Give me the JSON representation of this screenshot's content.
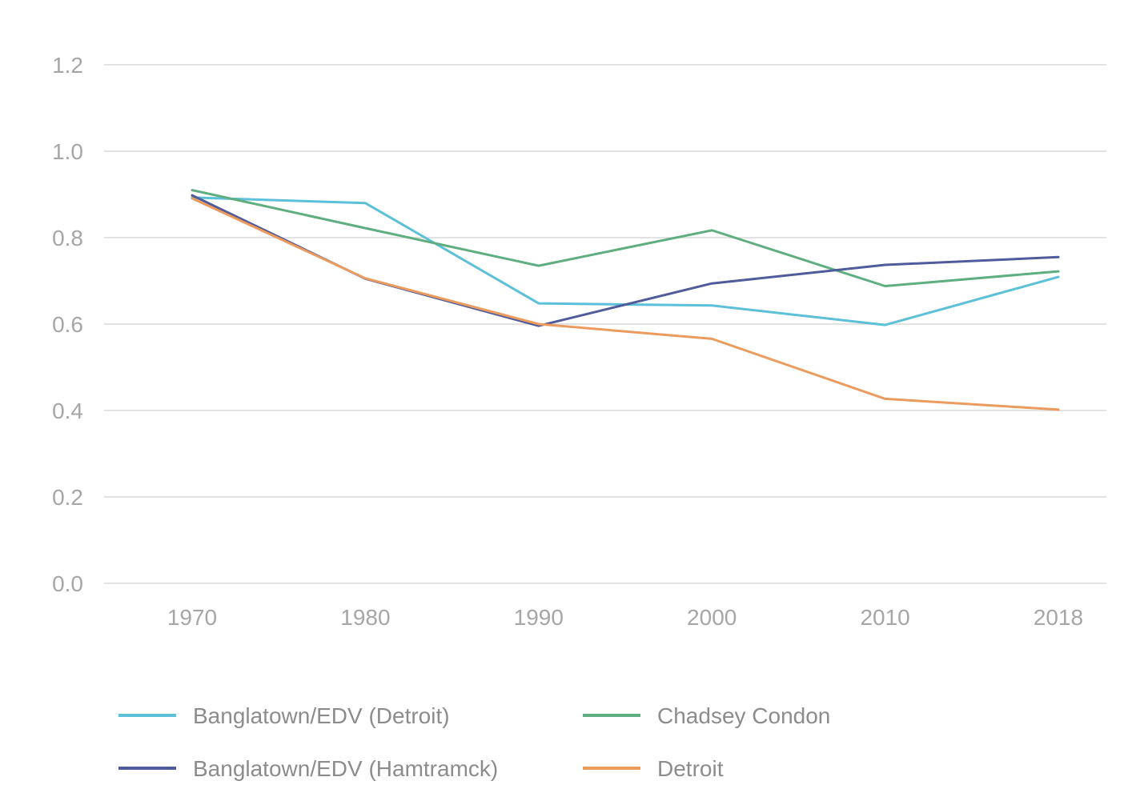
{
  "chart_data": {
    "type": "line",
    "title": "",
    "xlabel": "",
    "ylabel": "",
    "x": [
      "1970",
      "1980",
      "1990",
      "2000",
      "2010",
      "2018"
    ],
    "ylim": [
      0,
      1.2
    ],
    "yticks": [
      "0.0",
      "0.2",
      "0.4",
      "0.6",
      "0.8",
      "1.0",
      "1.2"
    ],
    "grid": true,
    "legend_position": "bottom",
    "series": [
      {
        "name": "Banglatown/EDV (Detroit)",
        "color": "#5bc0d8",
        "values": [
          0.893,
          0.88,
          0.648,
          0.643,
          0.598,
          0.709
        ]
      },
      {
        "name": "Chadsey Condon",
        "color": "#5fae80",
        "values": [
          0.91,
          0.822,
          0.735,
          0.817,
          0.688,
          0.722
        ]
      },
      {
        "name": "Banglatown/EDV (Hamtramck)",
        "color": "#4f5b9a",
        "values": [
          0.898,
          0.705,
          0.596,
          0.694,
          0.737,
          0.755
        ]
      },
      {
        "name": "Detroit",
        "color": "#ec9b5e",
        "values": [
          0.891,
          0.706,
          0.6,
          0.566,
          0.427,
          0.402
        ]
      }
    ]
  }
}
